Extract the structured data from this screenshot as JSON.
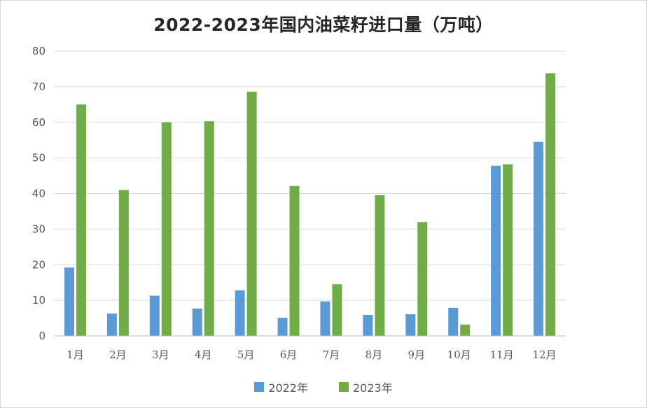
{
  "chart_data": {
    "type": "bar",
    "title": "2022-2023年国内油菜籽进口量（万吨）",
    "categories": [
      "1月",
      "2月",
      "3月",
      "4月",
      "5月",
      "6月",
      "7月",
      "8月",
      "9月",
      "10月",
      "11月",
      "12月"
    ],
    "series": [
      {
        "name": "2022年",
        "color": "#5b9bd5",
        "values": [
          19.2,
          6.3,
          11.3,
          7.7,
          12.8,
          5.1,
          9.7,
          5.9,
          6.1,
          7.9,
          47.8,
          54.5
        ]
      },
      {
        "name": "2023年",
        "color": "#70ad47",
        "values": [
          65.0,
          41.0,
          60.0,
          60.3,
          68.6,
          42.1,
          14.5,
          39.5,
          32.0,
          3.2,
          48.2,
          73.8
        ]
      }
    ],
    "ylim": [
      0,
      80
    ],
    "yticks": [
      0,
      10,
      20,
      30,
      40,
      50,
      60,
      70,
      80
    ],
    "xlabel": "",
    "ylabel": "",
    "grid": true,
    "legend_position": "bottom"
  }
}
